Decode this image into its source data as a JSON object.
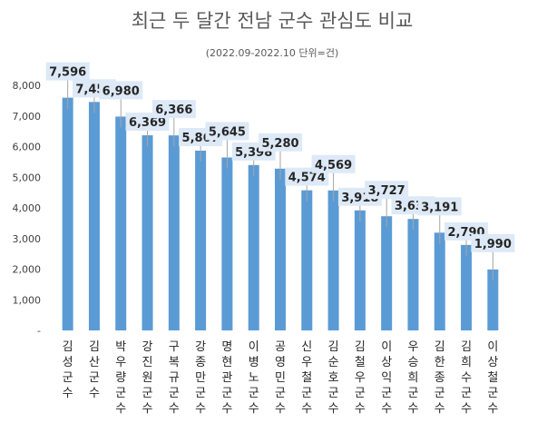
{
  "chart_data": {
    "type": "bar",
    "title": "최근 두 달간 전남 군수 관심도 비교",
    "subtitle": "(2022.09-2022.10 단위=건)",
    "categories": [
      "김성군수",
      "김산군수",
      "박우량군수",
      "강진원군수",
      "구복규군수",
      "강종만군수",
      "명현관군수",
      "이병노군수",
      "공영민군수",
      "신우철군수",
      "김순호군수",
      "김철우군수",
      "이상익군수",
      "우승희군수",
      "김한종군수",
      "김희수군수",
      "이상철군수"
    ],
    "values": [
      7596,
      7457,
      6980,
      6369,
      6366,
      5867,
      5645,
      5398,
      5280,
      4574,
      4569,
      3918,
      3727,
      3638,
      3191,
      2790,
      1990
    ],
    "data_labels": [
      "7,596",
      "7,457",
      "6,980",
      "6,369",
      "6,366",
      "5,867",
      "5,645",
      "5,398",
      "5,280",
      "4,574",
      "4,569",
      "3,918",
      "3,727",
      "3,638",
      "3,191",
      "2,790",
      "1,990"
    ],
    "yticks": [
      "-",
      "1,000",
      "2,000",
      "3,000",
      "4,000",
      "5,000",
      "6,000",
      "7,000",
      "8,000"
    ],
    "ylim": [
      0,
      8000
    ],
    "grid": false,
    "legend": "none",
    "bar_color": "#5b9bd5",
    "label_bg_color": "#dde9f6",
    "leader_color": "#a6a6a6"
  }
}
